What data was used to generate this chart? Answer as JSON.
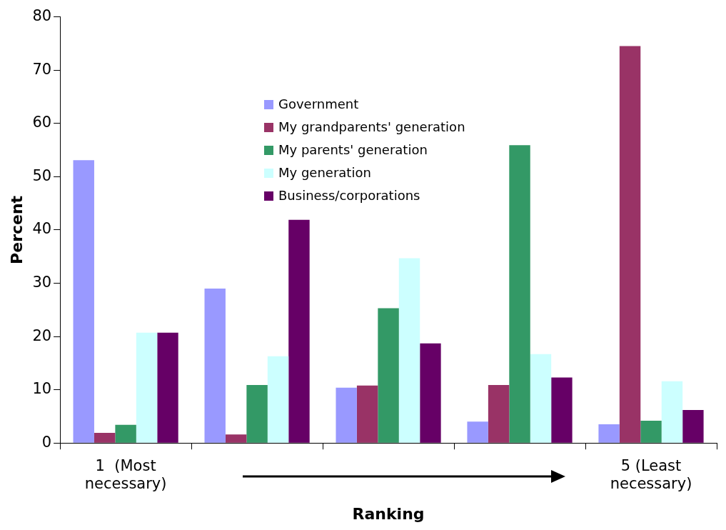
{
  "chart_data": {
    "type": "bar",
    "xlabel": "Ranking",
    "ylabel": "Percent",
    "categories": [
      "1  (Most necessary)",
      null,
      null,
      null,
      "5 (Least necessary)"
    ],
    "ylim": [
      0,
      80
    ],
    "yticks": [
      0,
      10,
      20,
      30,
      40,
      50,
      60,
      70,
      80
    ],
    "grid": false,
    "legend": "top",
    "series": [
      {
        "name": "Government",
        "color": "#9999ff",
        "values": [
          53.1,
          29.0,
          10.4,
          4.0,
          3.5
        ]
      },
      {
        "name": "My grandparents' generation",
        "color": "#993366",
        "values": [
          1.9,
          1.6,
          10.8,
          10.9,
          74.5
        ]
      },
      {
        "name": "My parents' generation",
        "color": "#339966",
        "values": [
          3.4,
          10.9,
          25.3,
          55.9,
          4.2
        ]
      },
      {
        "name": "My generation",
        "color": "#ccffff",
        "values": [
          20.7,
          16.3,
          34.7,
          16.7,
          11.6
        ]
      },
      {
        "name": "Business/corporations",
        "color": "#660066",
        "values": [
          20.7,
          41.9,
          18.7,
          12.3,
          6.2
        ]
      }
    ]
  }
}
